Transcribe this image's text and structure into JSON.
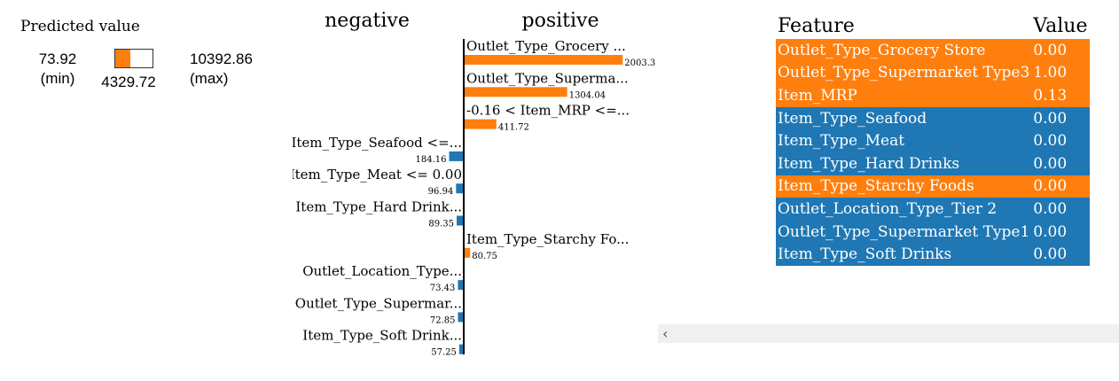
{
  "predicted": {
    "title": "Predicted value",
    "min": "73.92",
    "min_label": "(min)",
    "value": "4329.72",
    "max": "10392.86",
    "max_label": "(max)",
    "fill_fraction": 0.41
  },
  "colors": {
    "positive": "#ff7f0e",
    "negative": "#1f77b4",
    "axis": "#000000"
  },
  "chart_data": {
    "type": "bar",
    "headers": {
      "negative": "negative",
      "positive": "positive"
    },
    "bars": [
      {
        "label": "Outlet_Type_Grocery ...",
        "value": 2003.33,
        "value_label": "2003.3",
        "sign": "positive"
      },
      {
        "label": "Outlet_Type_Superma...",
        "value": 1304.04,
        "value_label": "1304.04",
        "sign": "positive"
      },
      {
        "label": "-0.16 < Item_MRP <=...",
        "value": 411.72,
        "value_label": "411.72",
        "sign": "positive"
      },
      {
        "label": "Item_Type_Seafood <=...",
        "value": 184.16,
        "value_label": "184.16",
        "sign": "negative"
      },
      {
        "label": "Item_Type_Meat <= 0.00",
        "value": 96.94,
        "value_label": "96.94",
        "sign": "negative"
      },
      {
        "label": "Item_Type_Hard Drink...",
        "value": 89.35,
        "value_label": "89.35",
        "sign": "negative"
      },
      {
        "label": "Item_Type_Starchy Fo...",
        "value": 80.75,
        "value_label": "80.75",
        "sign": "positive"
      },
      {
        "label": "Outlet_Location_Type...",
        "value": 73.43,
        "value_label": "73.43",
        "sign": "negative"
      },
      {
        "label": "Outlet_Type_Supermar...",
        "value": 72.85,
        "value_label": "72.85",
        "sign": "negative"
      },
      {
        "label": "Item_Type_Soft Drink...",
        "value": 57.25,
        "value_label": "57.25",
        "sign": "negative"
      }
    ]
  },
  "table": {
    "headers": [
      "Feature",
      "Value"
    ],
    "rows": [
      {
        "feature": "Outlet_Type_Grocery Store",
        "value": "0.00",
        "sign": "positive"
      },
      {
        "feature": "Outlet_Type_Supermarket Type3",
        "value": "1.00",
        "sign": "positive"
      },
      {
        "feature": "Item_MRP",
        "value": "0.13",
        "sign": "positive"
      },
      {
        "feature": "Item_Type_Seafood",
        "value": "0.00",
        "sign": "negative"
      },
      {
        "feature": "Item_Type_Meat",
        "value": "0.00",
        "sign": "negative"
      },
      {
        "feature": "Item_Type_Hard Drinks",
        "value": "0.00",
        "sign": "negative"
      },
      {
        "feature": "Item_Type_Starchy Foods",
        "value": "0.00",
        "sign": "positive"
      },
      {
        "feature": "Outlet_Location_Type_Tier 2",
        "value": "0.00",
        "sign": "negative"
      },
      {
        "feature": "Outlet_Type_Supermarket Type1",
        "value": "0.00",
        "sign": "negative"
      },
      {
        "feature": "Item_Type_Soft Drinks",
        "value": "0.00",
        "sign": "negative"
      }
    ]
  },
  "scrollbar": {
    "arrow": "‹",
    "arrow_icon": "chevron-left-icon"
  }
}
